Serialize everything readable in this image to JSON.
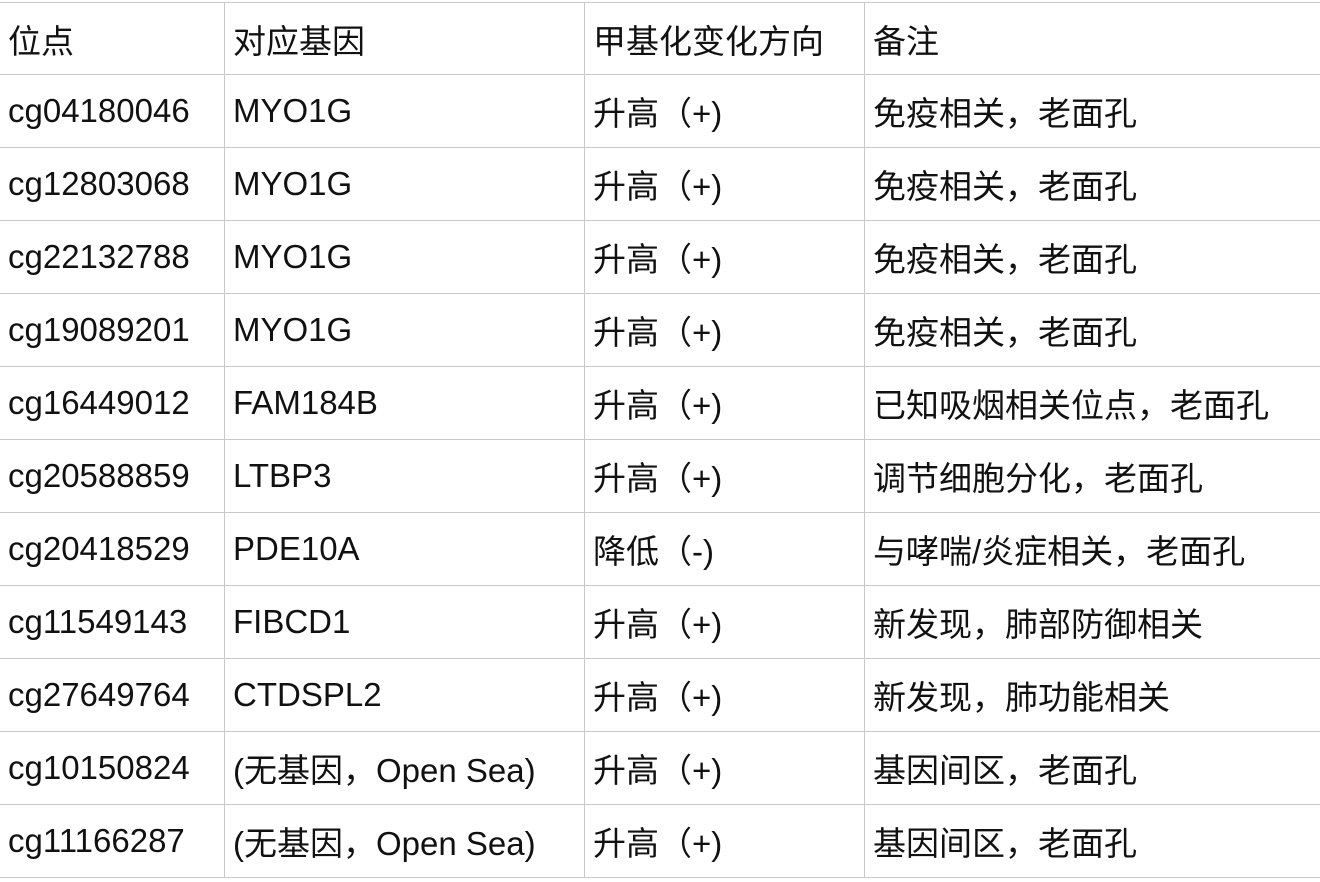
{
  "table": {
    "headers": [
      "位点",
      "对应基因",
      "甲基化变化方向",
      "备注"
    ],
    "rows": [
      [
        "cg04180046",
        "MYO1G",
        "升高（+)",
        "免疫相关，老面孔"
      ],
      [
        "cg12803068",
        "MYO1G",
        "升高（+)",
        "免疫相关，老面孔"
      ],
      [
        "cg22132788",
        "MYO1G",
        "升高（+)",
        "免疫相关，老面孔"
      ],
      [
        "cg19089201",
        "MYO1G",
        "升高（+)",
        "免疫相关，老面孔"
      ],
      [
        "cg16449012",
        "FAM184B",
        "升高（+)",
        "已知吸烟相关位点，老面孔"
      ],
      [
        "cg20588859",
        "LTBP3",
        "升高（+)",
        "调节细胞分化，老面孔"
      ],
      [
        "cg20418529",
        "PDE10A",
        "降低（-)",
        "与哮喘/炎症相关，老面孔"
      ],
      [
        "cg11549143",
        "FIBCD1",
        "升高（+)",
        "新发现，肺部防御相关"
      ],
      [
        "cg27649764",
        "CTDSPL2",
        "升高（+)",
        "新发现，肺功能相关"
      ],
      [
        "cg10150824",
        "(无基因，Open Sea)",
        "升高（+)",
        "基因间区，老面孔"
      ],
      [
        "cg11166287",
        "(无基因，Open Sea)",
        "升高（+)",
        "基因间区，老面孔"
      ]
    ]
  }
}
